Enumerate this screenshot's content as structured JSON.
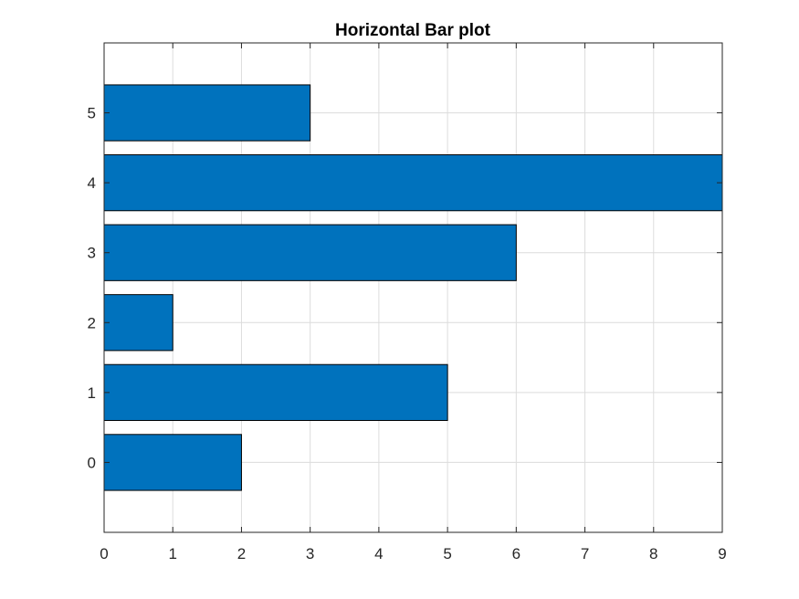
{
  "chart_data": {
    "type": "bar",
    "orientation": "horizontal",
    "title": "Horizontal Bar plot",
    "categories": [
      "0",
      "1",
      "2",
      "3",
      "4",
      "5"
    ],
    "values": [
      2,
      5,
      1,
      6,
      9,
      3
    ],
    "xlabel": "",
    "ylabel": "",
    "xlim": [
      0,
      9
    ],
    "ylim": [
      -1,
      6
    ],
    "xticks": [
      "0",
      "1",
      "2",
      "3",
      "4",
      "5",
      "6",
      "7",
      "8",
      "9"
    ],
    "yticks": [
      "0",
      "1",
      "2",
      "3",
      "4",
      "5"
    ],
    "grid": true,
    "bar_color": "#0072BD"
  }
}
